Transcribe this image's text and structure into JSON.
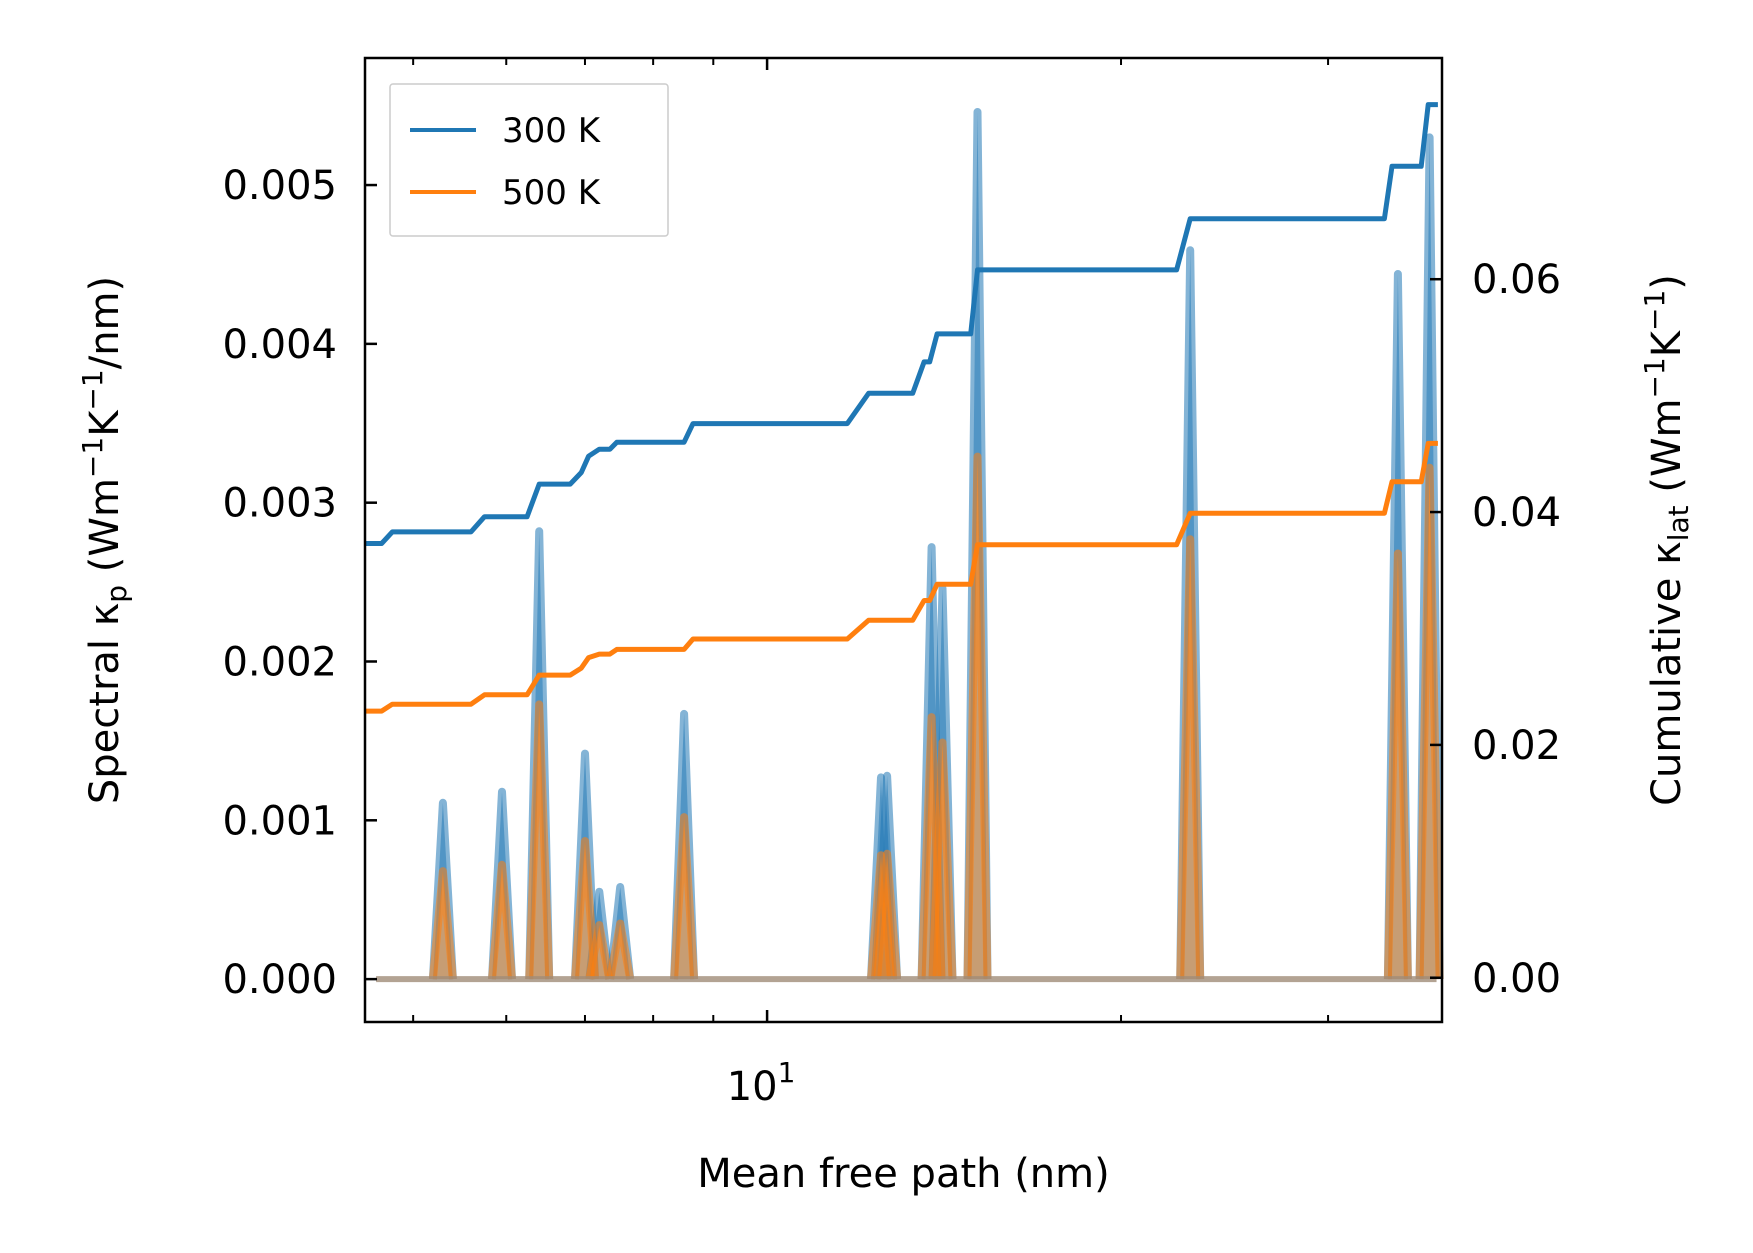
{
  "chart_data": {
    "type": "line",
    "xlabel": "Mean free path (nm)",
    "x_scale": "log",
    "xlim": [
      4.55,
      37.5
    ],
    "x_tick_labels": [
      {
        "value": 10,
        "base": "10",
        "exp": "1"
      }
    ],
    "y_left": {
      "label_prefix": "Spectral κ",
      "label_sub": "p",
      "label_units": "(Wm",
      "label_exp1": "−1",
      "label_k": "K",
      "label_exp2": "−1",
      "label_end": "/nm)",
      "ylim": [
        -0.00027,
        0.0058
      ],
      "ticks": [
        0.0,
        0.001,
        0.002,
        0.003,
        0.004,
        0.005
      ],
      "tick_labels": [
        "0.000",
        "0.001",
        "0.002",
        "0.003",
        "0.004",
        "0.005"
      ]
    },
    "y_right": {
      "label_prefix": "Cumulative κ",
      "label_sub": "lat",
      "label_units": "(Wm",
      "label_exp1": "−1",
      "label_k": "K",
      "label_exp2": "−1",
      "label_end": ")",
      "ylim": [
        -0.0038,
        0.079
      ],
      "ticks": [
        0.0,
        0.02,
        0.04,
        0.06
      ],
      "tick_labels": [
        "0.00",
        "0.02",
        "0.04",
        "0.06"
      ]
    },
    "legend": {
      "position": "top-left",
      "entries": [
        "300 K",
        "500 K"
      ]
    },
    "colors": {
      "300 K": "#1f77b4",
      "500 K": "#ff7f0e"
    },
    "spectral_peaks": {
      "x": [
        5.3,
        5.95,
        6.4,
        7.0,
        7.2,
        7.5,
        8.5,
        12.5,
        12.65,
        13.8,
        14.1,
        15.1,
        22.9,
        34.4,
        36.6
      ],
      "300 K": [
        0.00111,
        0.00118,
        0.00282,
        0.00142,
        0.00055,
        0.00058,
        0.00167,
        0.00127,
        0.00128,
        0.00272,
        0.00246,
        0.00546,
        0.00459,
        0.00444,
        0.0053
      ],
      "500 K": [
        0.00068,
        0.00072,
        0.00173,
        0.00087,
        0.00034,
        0.00035,
        0.00102,
        0.00078,
        0.00079,
        0.00165,
        0.00149,
        0.00329,
        0.00277,
        0.00268,
        0.00322
      ]
    },
    "cumulative": {
      "300 K": {
        "x": [
          4.55,
          4.7,
          4.8,
          5.6,
          5.75,
          6.25,
          6.4,
          6.8,
          6.95,
          7.05,
          7.2,
          7.35,
          7.45,
          8.5,
          8.65,
          11.7,
          12.2,
          13.3,
          13.6,
          13.75,
          13.95,
          14.9,
          15.1,
          22.3,
          22.9,
          33.5,
          34.0,
          36.0,
          36.5,
          37.2
        ],
        "y": [
          0.0373,
          0.0373,
          0.0383,
          0.0383,
          0.0396,
          0.0396,
          0.0424,
          0.0424,
          0.0434,
          0.0448,
          0.0454,
          0.0454,
          0.046,
          0.046,
          0.0476,
          0.0476,
          0.0502,
          0.0502,
          0.0529,
          0.0529,
          0.0553,
          0.0553,
          0.0608,
          0.0608,
          0.0652,
          0.0652,
          0.0697,
          0.0697,
          0.075,
          0.075
        ]
      },
      "500 K": {
        "x": [
          4.55,
          4.7,
          4.8,
          5.6,
          5.75,
          6.25,
          6.4,
          6.8,
          6.95,
          7.05,
          7.2,
          7.35,
          7.45,
          8.5,
          8.65,
          11.7,
          12.2,
          13.3,
          13.6,
          13.75,
          13.95,
          14.9,
          15.1,
          22.3,
          22.9,
          33.5,
          34.0,
          36.0,
          36.5,
          37.2
        ],
        "y": [
          0.0229,
          0.0229,
          0.0235,
          0.0235,
          0.0243,
          0.0243,
          0.026,
          0.026,
          0.0266,
          0.0275,
          0.0278,
          0.0278,
          0.0282,
          0.0282,
          0.0291,
          0.0291,
          0.0307,
          0.0307,
          0.0324,
          0.0324,
          0.0338,
          0.0338,
          0.0372,
          0.0372,
          0.0399,
          0.0399,
          0.0426,
          0.0426,
          0.0459,
          0.0459
        ]
      }
    }
  }
}
